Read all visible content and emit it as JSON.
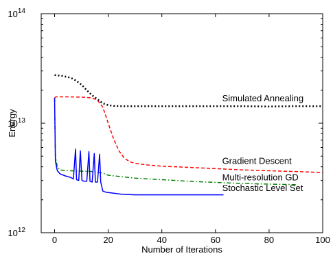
{
  "chart_data": {
    "type": "line",
    "xlabel": "Number of Iterations",
    "ylabel": "Energy",
    "xlim": [
      -5,
      100
    ],
    "ylim_exponent": [
      12,
      14
    ],
    "yscale": "log",
    "grid": false,
    "x_ticks": [
      {
        "value": 0,
        "label": "0"
      },
      {
        "value": 20,
        "label": "20"
      },
      {
        "value": 40,
        "label": "40"
      },
      {
        "value": 60,
        "label": "60"
      },
      {
        "value": 80,
        "label": "80"
      },
      {
        "value": 100,
        "label": "100"
      }
    ],
    "y_ticks": [
      {
        "exponent": 12,
        "base": "10",
        "exp": "12"
      },
      {
        "exponent": 13,
        "base": "10",
        "exp": "13"
      },
      {
        "exponent": 14,
        "base": "10",
        "exp": "14"
      }
    ],
    "series": [
      {
        "name": "Simulated Annealing",
        "color": "#000000",
        "style": "dotted",
        "x": [
          0,
          3,
          6,
          8,
          10,
          12,
          14,
          16,
          18,
          20,
          22,
          25,
          30,
          40,
          50,
          60,
          70,
          80,
          90,
          100
        ],
        "y": [
          27500000000000.0,
          27000000000000.0,
          26000000000000.0,
          24500000000000.0,
          22500000000000.0,
          20000000000000.0,
          18000000000000.0,
          16500000000000.0,
          15200000000000.0,
          14600000000000.0,
          14400000000000.0,
          14300000000000.0,
          14300000000000.0,
          14300000000000.0,
          14300000000000.0,
          14300000000000.0,
          14300000000000.0,
          14200000000000.0,
          14300000000000.0,
          14300000000000.0
        ]
      },
      {
        "name": "Gradient Descent",
        "color": "#ff0000",
        "style": "dashed",
        "x": [
          0,
          0.5,
          5,
          10,
          14,
          16,
          18,
          20,
          22,
          24,
          26,
          28,
          30,
          35,
          40,
          50,
          60,
          70,
          80,
          90,
          100
        ],
        "y": [
          17000000000000.0,
          17400000000000.0,
          17400000000000.0,
          17300000000000.0,
          17000000000000.0,
          16200000000000.0,
          14000000000000.0,
          10000000000000.0,
          7200000000000.0,
          5600000000000.0,
          4800000000000.0,
          4450000000000.0,
          4300000000000.0,
          4150000000000.0,
          4050000000000.0,
          3950000000000.0,
          3850000000000.0,
          3750000000000.0,
          3680000000000.0,
          3620000000000.0,
          3550000000000.0
        ]
      },
      {
        "name": "Multi-resolution GD",
        "color": "#008000",
        "style": "dashdot",
        "x": [
          0,
          0.3,
          1,
          2,
          4,
          6,
          10,
          14,
          18,
          20,
          25,
          30,
          40,
          50,
          60,
          70,
          80,
          90
        ],
        "y": [
          17000000000000.0,
          5000000000000.0,
          4000000000000.0,
          3750000000000.0,
          3700000000000.0,
          3680000000000.0,
          3650000000000.0,
          3620000000000.0,
          3500000000000.0,
          3350000000000.0,
          3250000000000.0,
          3150000000000.0,
          3050000000000.0,
          2950000000000.0,
          2880000000000.0,
          2820000000000.0,
          2780000000000.0,
          2750000000000.0
        ]
      },
      {
        "name": "Stochastic Level Set",
        "color": "#0000ff",
        "style": "solid",
        "x": [
          0,
          0.3,
          1,
          2,
          4,
          6,
          7,
          7.8,
          8.2,
          9,
          9.6,
          10.2,
          11,
          12,
          12.8,
          13.2,
          14,
          14.8,
          15.2,
          16,
          16.8,
          17.2,
          18,
          19,
          20,
          25,
          30,
          40,
          50,
          60,
          63
        ],
        "y": [
          17000000000000.0,
          4500000000000.0,
          3700000000000.0,
          3450000000000.0,
          3300000000000.0,
          3200000000000.0,
          3100000000000.0,
          5800000000000.0,
          3050000000000.0,
          3000000000000.0,
          5600000000000.0,
          3000000000000.0,
          2950000000000.0,
          2950000000000.0,
          5500000000000.0,
          2950000000000.0,
          2900000000000.0,
          5300000000000.0,
          2900000000000.0,
          2900000000000.0,
          5200000000000.0,
          2900000000000.0,
          2400000000000.0,
          2350000000000.0,
          2330000000000.0,
          2250000000000.0,
          2220000000000.0,
          2220000000000.0,
          2220000000000.0,
          2220000000000.0,
          2220000000000.0
        ]
      }
    ],
    "annotations": [
      {
        "text": "Simulated Annealing",
        "x": 62.5,
        "y": 15800000000000.0
      },
      {
        "text": "Gradient Descent",
        "x": 62.5,
        "y": 4250000000000.0
      },
      {
        "text": "Multi-resolution GD",
        "x": 62.5,
        "y": 3000000000000.0
      },
      {
        "text": "Stochastic Level Set",
        "x": 62.5,
        "y": 2400000000000.0
      }
    ]
  }
}
